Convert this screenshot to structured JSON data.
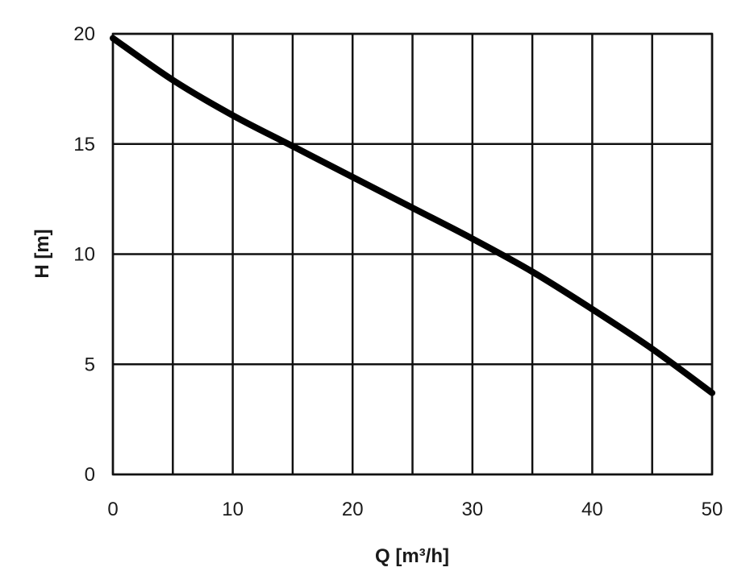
{
  "chart_data": {
    "type": "line",
    "xlabel": "Q [m³/h]",
    "ylabel": "H [m]",
    "xlim": [
      0,
      50
    ],
    "ylim": [
      0,
      20
    ],
    "x_ticks": [
      0,
      10,
      20,
      30,
      40,
      50
    ],
    "y_ticks": [
      0,
      5,
      10,
      15,
      20
    ],
    "x_grid_step": 5,
    "y_grid_step": 5,
    "grid": true,
    "legend": "none",
    "line_color": "#000000",
    "series": [
      {
        "x": [
          0,
          5,
          10,
          15,
          20,
          25,
          30,
          35,
          40,
          45,
          50
        ],
        "y": [
          19.8,
          17.9,
          16.3,
          14.9,
          13.5,
          12.1,
          10.7,
          9.2,
          7.5,
          5.7,
          3.7
        ]
      }
    ]
  }
}
